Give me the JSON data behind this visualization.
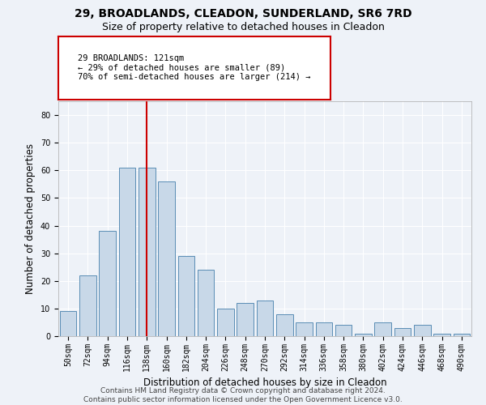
{
  "title1": "29, BROADLANDS, CLEADON, SUNDERLAND, SR6 7RD",
  "title2": "Size of property relative to detached houses in Cleadon",
  "xlabel": "Distribution of detached houses by size in Cleadon",
  "ylabel": "Number of detached properties",
  "categories": [
    "50sqm",
    "72sqm",
    "94sqm",
    "116sqm",
    "138sqm",
    "160sqm",
    "182sqm",
    "204sqm",
    "226sqm",
    "248sqm",
    "270sqm",
    "292sqm",
    "314sqm",
    "336sqm",
    "358sqm",
    "380sqm",
    "402sqm",
    "424sqm",
    "446sqm",
    "468sqm",
    "490sqm"
  ],
  "values": [
    9,
    22,
    38,
    61,
    61,
    56,
    29,
    24,
    10,
    12,
    13,
    8,
    5,
    5,
    4,
    1,
    5,
    3,
    4,
    1,
    1
  ],
  "bar_color": "#c8d8e8",
  "bar_edge_color": "#5a8db5",
  "vline_x": 4,
  "vline_color": "#cc0000",
  "annotation_text": "29 BROADLANDS: 121sqm\n← 29% of detached houses are smaller (89)\n70% of semi-detached houses are larger (214) →",
  "annotation_box_color": "#ffffff",
  "annotation_box_edge": "#cc0000",
  "ylim": [
    0,
    85
  ],
  "yticks": [
    0,
    10,
    20,
    30,
    40,
    50,
    60,
    70,
    80
  ],
  "background_color": "#eef2f8",
  "grid_color": "#ffffff",
  "footer1": "Contains HM Land Registry data © Crown copyright and database right 2024.",
  "footer2": "Contains public sector information licensed under the Open Government Licence v3.0.",
  "title1_fontsize": 10,
  "title2_fontsize": 9,
  "xlabel_fontsize": 8.5,
  "ylabel_fontsize": 8.5,
  "tick_fontsize": 7,
  "annotation_fontsize": 7.5,
  "footer_fontsize": 6.5
}
